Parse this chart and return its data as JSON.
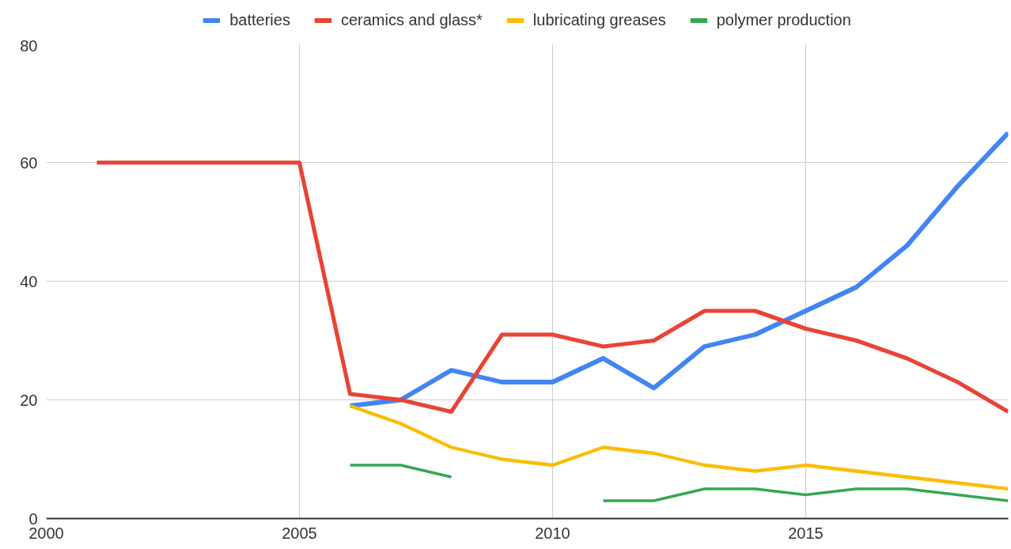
{
  "chart_data": {
    "type": "line",
    "x": [
      2001,
      2002,
      2003,
      2004,
      2005,
      2006,
      2007,
      2008,
      2009,
      2010,
      2011,
      2012,
      2013,
      2014,
      2015,
      2016,
      2017,
      2018,
      2019
    ],
    "series": [
      {
        "name": "batteries",
        "color": "#4285f4",
        "values": [
          null,
          null,
          null,
          null,
          null,
          19,
          20,
          25,
          23,
          23,
          27,
          22,
          29,
          31,
          35,
          39,
          46,
          56,
          65
        ]
      },
      {
        "name": "ceramics and glass*",
        "color": "#ea4335",
        "values": [
          60,
          60,
          60,
          60,
          60,
          21,
          20,
          18,
          31,
          31,
          29,
          30,
          35,
          35,
          32,
          30,
          27,
          23,
          18
        ]
      },
      {
        "name": "lubricating greases",
        "color": "#fbbc04",
        "values": [
          null,
          null,
          null,
          null,
          null,
          19,
          16,
          12,
          10,
          9,
          12,
          11,
          9,
          8,
          9,
          8,
          7,
          6,
          5
        ]
      },
      {
        "name": "polymer production",
        "color": "#34a853",
        "values": [
          null,
          null,
          null,
          null,
          null,
          9,
          9,
          7,
          null,
          null,
          3,
          3,
          5,
          5,
          4,
          5,
          5,
          4,
          3
        ]
      }
    ],
    "xlim": [
      2000,
      2019
    ],
    "xticks": [
      2000,
      2005,
      2010,
      2015
    ],
    "ylim": [
      0,
      80
    ],
    "yticks": [
      0,
      20,
      40,
      60,
      80
    ],
    "grid": true,
    "legend": "top",
    "marker": "none",
    "line_style": "solid"
  }
}
